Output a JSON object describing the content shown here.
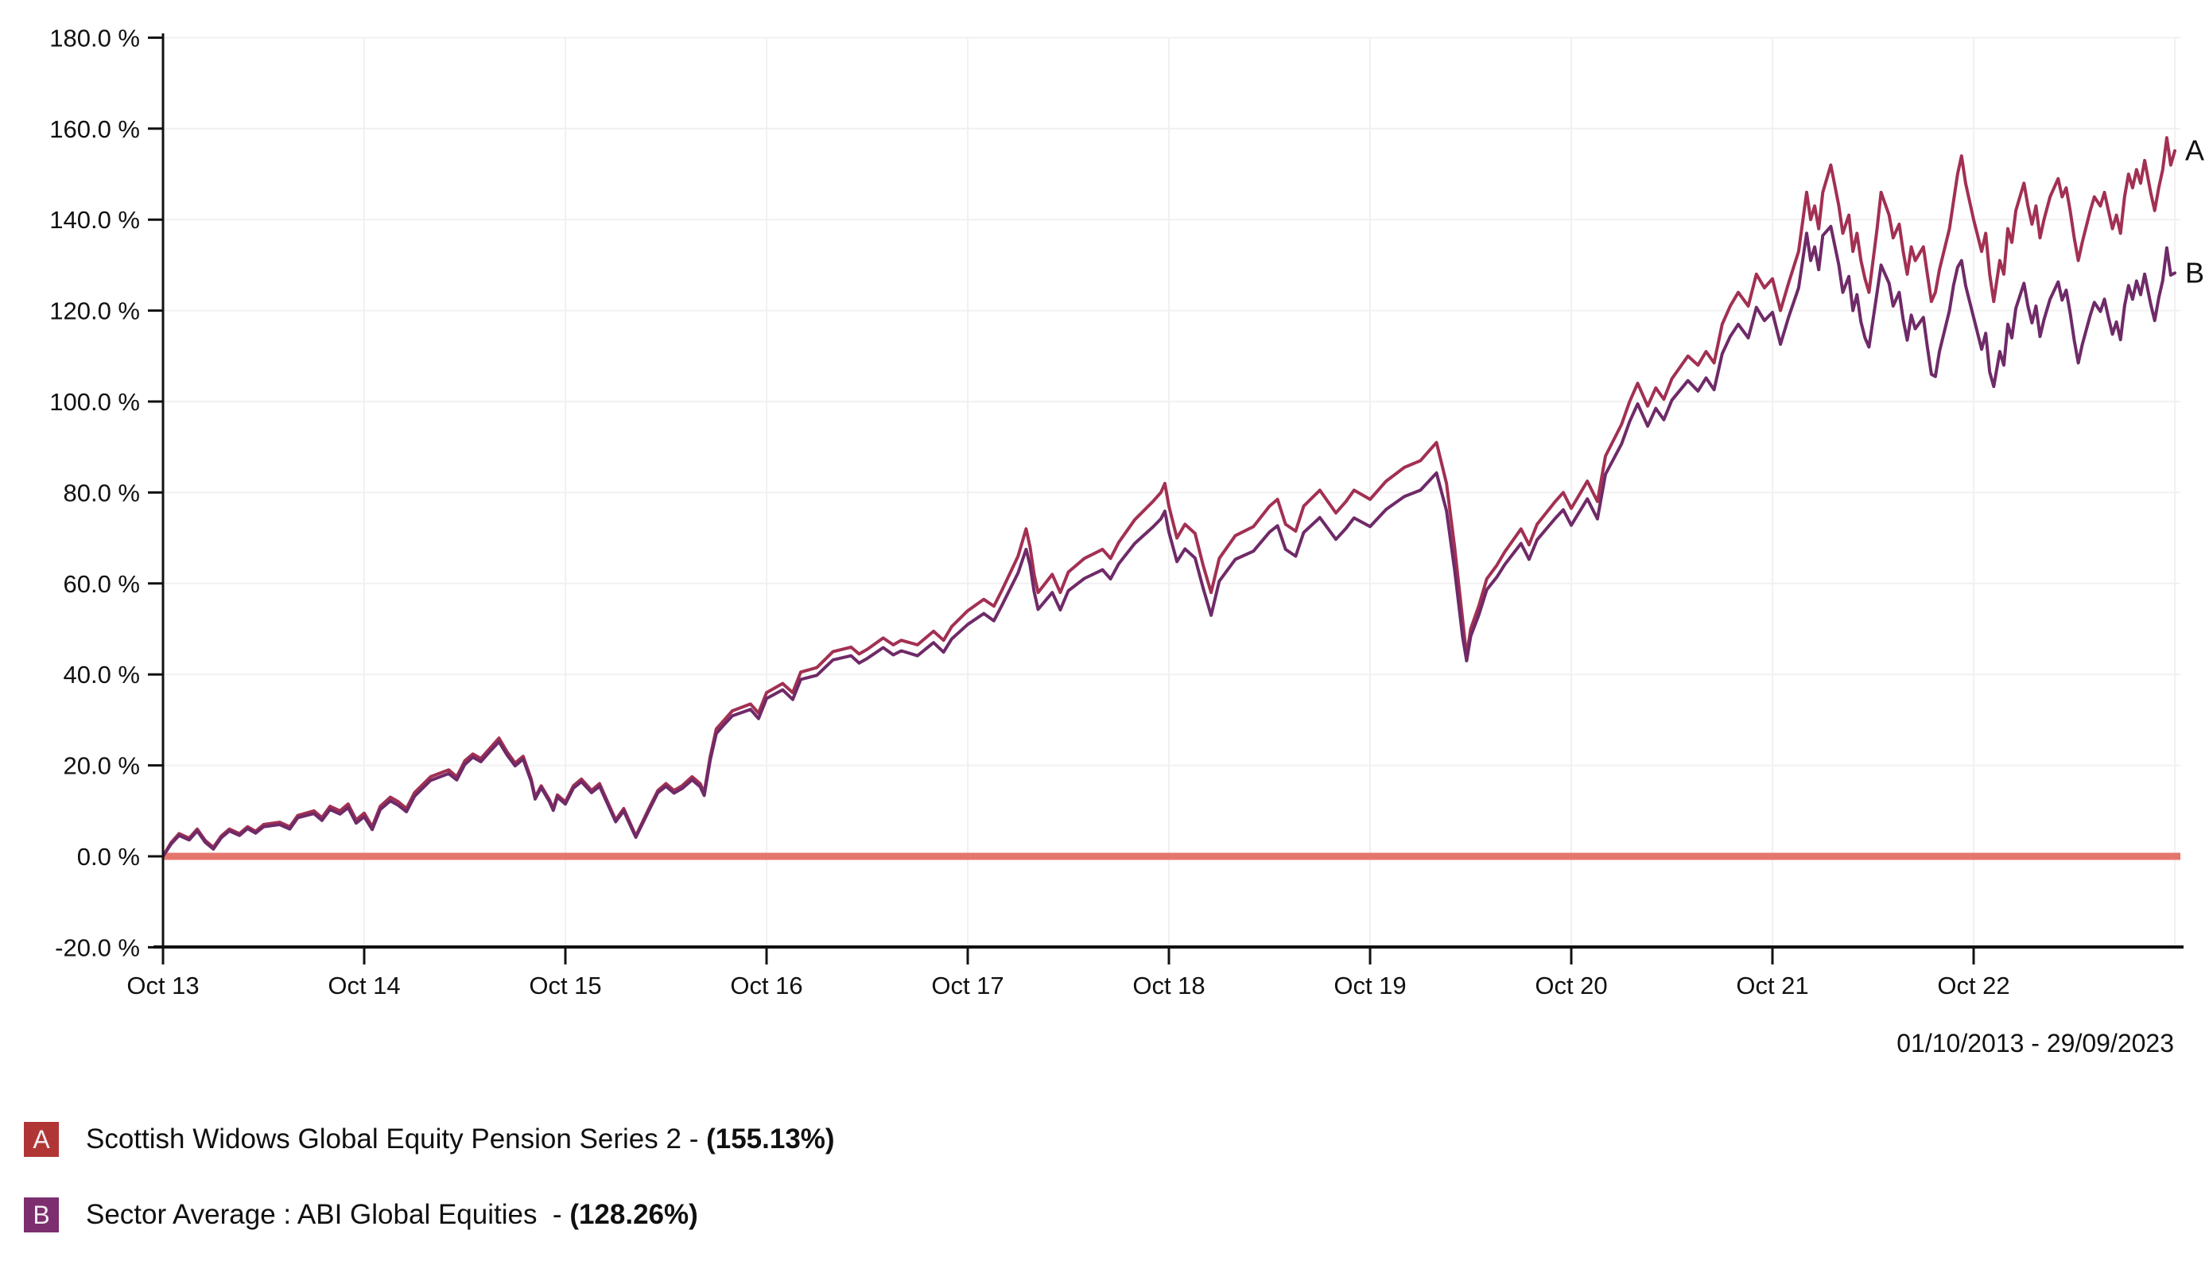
{
  "page": {
    "background": "#ffffff",
    "axis_color": "#111111"
  },
  "date_range_label": "01/10/2013 - 29/09/2023",
  "legend_separator": "- ",
  "chart_data": {
    "type": "line",
    "title": "",
    "date_range": "01/10/2013 - 29/09/2023",
    "grid": true,
    "grid_color": "#f2f0f1",
    "legend_position": "bottom-left",
    "x": {
      "unit": "years since 01/10/2013",
      "min": 0,
      "max": 10,
      "ticks": [
        {
          "t": 0,
          "label": "Oct 13"
        },
        {
          "t": 1,
          "label": "Oct 14"
        },
        {
          "t": 2,
          "label": "Oct 15"
        },
        {
          "t": 3,
          "label": "Oct 16"
        },
        {
          "t": 4,
          "label": "Oct 17"
        },
        {
          "t": 5,
          "label": "Oct 18"
        },
        {
          "t": 6,
          "label": "Oct 19"
        },
        {
          "t": 7,
          "label": "Oct 20"
        },
        {
          "t": 8,
          "label": "Oct 21"
        },
        {
          "t": 9,
          "label": "Oct 22"
        }
      ]
    },
    "y": {
      "unit": "%",
      "min": -20,
      "max": 180,
      "tick_step": 20,
      "tick_labels": [
        "-20.0 %",
        "0.0 %",
        "20.0 %",
        "40.0 %",
        "60.0 %",
        "80.0 %",
        "100.0 %",
        "120.0 %",
        "140.0 %",
        "160.0 %",
        "180.0 %"
      ]
    },
    "zero_line": {
      "value": 0,
      "color": "#e4756d"
    },
    "t": [
      0.0,
      0.04,
      0.08,
      0.13,
      0.17,
      0.21,
      0.25,
      0.29,
      0.33,
      0.38,
      0.42,
      0.46,
      0.5,
      0.58,
      0.63,
      0.67,
      0.75,
      0.79,
      0.83,
      0.88,
      0.92,
      0.96,
      1.0,
      1.04,
      1.08,
      1.13,
      1.17,
      1.21,
      1.25,
      1.33,
      1.42,
      1.46,
      1.5,
      1.54,
      1.58,
      1.63,
      1.67,
      1.71,
      1.75,
      1.79,
      1.83,
      1.85,
      1.88,
      1.92,
      1.94,
      1.96,
      2.0,
      2.04,
      2.08,
      2.13,
      2.17,
      2.21,
      2.25,
      2.29,
      2.33,
      2.35,
      2.42,
      2.46,
      2.5,
      2.54,
      2.58,
      2.63,
      2.67,
      2.69,
      2.72,
      2.75,
      2.79,
      2.83,
      2.92,
      2.96,
      3.0,
      3.08,
      3.13,
      3.17,
      3.25,
      3.33,
      3.42,
      3.46,
      3.5,
      3.58,
      3.63,
      3.67,
      3.75,
      3.83,
      3.88,
      3.92,
      4.0,
      4.08,
      4.13,
      4.17,
      4.25,
      4.29,
      4.31,
      4.33,
      4.35,
      4.42,
      4.46,
      4.5,
      4.58,
      4.67,
      4.71,
      4.75,
      4.83,
      4.92,
      4.96,
      4.98,
      5.0,
      5.04,
      5.08,
      5.13,
      5.17,
      5.21,
      5.25,
      5.33,
      5.42,
      5.5,
      5.54,
      5.58,
      5.63,
      5.67,
      5.75,
      5.79,
      5.83,
      5.88,
      5.92,
      6.0,
      6.08,
      6.17,
      6.25,
      6.29,
      6.33,
      6.38,
      6.42,
      6.46,
      6.48,
      6.5,
      6.54,
      6.58,
      6.63,
      6.67,
      6.75,
      6.79,
      6.83,
      6.92,
      6.96,
      7.0,
      7.04,
      7.08,
      7.13,
      7.17,
      7.25,
      7.29,
      7.33,
      7.38,
      7.42,
      7.46,
      7.5,
      7.58,
      7.63,
      7.67,
      7.71,
      7.75,
      7.79,
      7.83,
      7.88,
      7.92,
      7.96,
      8.0,
      8.04,
      8.08,
      8.13,
      8.17,
      8.19,
      8.21,
      8.23,
      8.25,
      8.29,
      8.33,
      8.35,
      8.38,
      8.4,
      8.42,
      8.44,
      8.46,
      8.48,
      8.5,
      8.52,
      8.54,
      8.58,
      8.6,
      8.63,
      8.65,
      8.67,
      8.69,
      8.71,
      8.75,
      8.77,
      8.79,
      8.81,
      8.83,
      8.88,
      8.9,
      8.92,
      8.94,
      8.96,
      9.0,
      9.04,
      9.06,
      9.08,
      9.1,
      9.13,
      9.15,
      9.17,
      9.19,
      9.21,
      9.25,
      9.27,
      9.29,
      9.31,
      9.33,
      9.35,
      9.38,
      9.42,
      9.44,
      9.46,
      9.48,
      9.5,
      9.52,
      9.54,
      9.58,
      9.6,
      9.63,
      9.65,
      9.67,
      9.69,
      9.71,
      9.73,
      9.75,
      9.77,
      9.79,
      9.81,
      9.83,
      9.85,
      9.88,
      9.9,
      9.92,
      9.94,
      9.96,
      9.98,
      10.0
    ],
    "series": [
      {
        "id": "A",
        "name": "Scottish Widows Global Equity Pension Series 2 ",
        "final_label": "(155.13%)",
        "final_value": 155.13,
        "color": "#a23052",
        "legend_color": "#b13535",
        "values": [
          0,
          3,
          5,
          4,
          6,
          3.5,
          2,
          4.5,
          6,
          5,
          6.5,
          5.5,
          7,
          7.5,
          6.5,
          9,
          10,
          8.5,
          11,
          10,
          11.5,
          8,
          9.5,
          6.5,
          11,
          13,
          12,
          10.5,
          14,
          17.5,
          19,
          17.5,
          21,
          22.5,
          21.5,
          24,
          26,
          23,
          20.5,
          22,
          17,
          13,
          15.5,
          12.5,
          10.5,
          13.5,
          12,
          15.5,
          17,
          14.5,
          16,
          12,
          8,
          10.5,
          6.5,
          4.5,
          11,
          14.5,
          16,
          14.5,
          15.5,
          17.5,
          16,
          14,
          22,
          28,
          30,
          32,
          33.5,
          31.5,
          36,
          38,
          36,
          40.5,
          41.5,
          45,
          46,
          44.5,
          45.5,
          48,
          46.5,
          47.5,
          46.5,
          49.5,
          47.5,
          50.5,
          54,
          56.5,
          55,
          58.5,
          66,
          72,
          68,
          62,
          58,
          62,
          58,
          62.5,
          65.5,
          67.5,
          65.5,
          69,
          74,
          78,
          80,
          82,
          77,
          70,
          73,
          71,
          64,
          58,
          65.5,
          70.5,
          72.5,
          77,
          78.5,
          73,
          71.5,
          77,
          80.5,
          78,
          75.5,
          78,
          80.5,
          78.5,
          82.5,
          85.5,
          87,
          89,
          91,
          82,
          68,
          52,
          44,
          50,
          55,
          61,
          64,
          67,
          72,
          68.5,
          73,
          78,
          80,
          76.5,
          79.5,
          82.5,
          78,
          88,
          95,
          100,
          104,
          99,
          103,
          100.5,
          105,
          110,
          108,
          111,
          108.5,
          117,
          121,
          124,
          121,
          128,
          125,
          127,
          120,
          126,
          133,
          146,
          140,
          143,
          138,
          146,
          152,
          143,
          137,
          141,
          133,
          137,
          131,
          127,
          124,
          131,
          138,
          146,
          141,
          136,
          139,
          133,
          128,
          134,
          131,
          134,
          128,
          122,
          124,
          129,
          138,
          144,
          150,
          154,
          148,
          140,
          133,
          137,
          128,
          122,
          131,
          128,
          138,
          135,
          142,
          148,
          143,
          139,
          143,
          136,
          140,
          145,
          149,
          145,
          147,
          142,
          136,
          131,
          135,
          142,
          145,
          143,
          146,
          142,
          138,
          141,
          137,
          145,
          150,
          147,
          151,
          148,
          153,
          146,
          142,
          147,
          151,
          158,
          152,
          155.13
        ]
      },
      {
        "id": "B",
        "name": "Sector Average : ABI Global Equities  ",
        "final_label": "(128.26%)",
        "final_value": 128.26,
        "color": "#6f2a68",
        "legend_color": "#7c2e6f",
        "values": [
          0,
          2.7,
          4.6,
          3.6,
          5.6,
          3.1,
          1.6,
          4.1,
          5.6,
          4.6,
          6.1,
          5.1,
          6.5,
          7,
          6,
          8.5,
          9.4,
          7.9,
          10.3,
          9.3,
          10.7,
          7.3,
          8.7,
          5.9,
          10.3,
          12.2,
          11.2,
          9.8,
          13.2,
          16.7,
          18.2,
          16.8,
          20.2,
          21.8,
          20.8,
          23.3,
          25.2,
          22.3,
          19.9,
          21.4,
          16.5,
          12.6,
          15.1,
          12.1,
          10.1,
          13,
          11.5,
          15,
          16.4,
          14,
          15.4,
          11.5,
          7.6,
          10,
          6.1,
          4.2,
          10.5,
          14,
          15.4,
          13.9,
          14.9,
          16.8,
          15.3,
          13.4,
          21.2,
          27,
          29,
          30.9,
          32.3,
          30.3,
          34.7,
          36.6,
          34.5,
          38.9,
          39.8,
          43.2,
          44.1,
          42.5,
          43.5,
          45.9,
          44.3,
          45.2,
          44.1,
          47,
          44.9,
          47.8,
          51,
          53.4,
          51.8,
          55.2,
          62.3,
          67.5,
          64,
          58.2,
          54.3,
          58,
          54.2,
          58.4,
          61.1,
          63,
          61,
          64.3,
          68.8,
          72.4,
          74.2,
          75.9,
          71.3,
          64.8,
          67.6,
          65.6,
          59,
          53,
          60.5,
          65.3,
          67.1,
          71.3,
          72.7,
          67.5,
          66,
          71.2,
          74.5,
          72.1,
          69.7,
          72.1,
          74.4,
          72.5,
          76.3,
          79.1,
          80.5,
          82.4,
          84.3,
          76,
          63,
          48.2,
          43,
          48.4,
          53,
          58.6,
          61.4,
          64.2,
          68.8,
          65.3,
          69.6,
          74.3,
          76.2,
          72.8,
          75.7,
          78.6,
          74.2,
          84,
          90.7,
          95.6,
          99.5,
          94.6,
          98.5,
          96,
          100.3,
          104.6,
          102.3,
          105.2,
          102.6,
          110.5,
          114.3,
          117,
          114,
          120.7,
          117.8,
          119.6,
          112.6,
          118.5,
          125,
          137,
          131,
          134,
          129,
          136.5,
          138.5,
          130,
          124,
          127.5,
          120,
          123.5,
          117.5,
          114,
          112,
          118,
          124,
          130,
          126,
          121,
          124,
          118,
          113.5,
          119,
          116,
          118.5,
          112,
          106,
          105.5,
          111,
          120,
          125.5,
          129.5,
          131,
          125.5,
          118.5,
          111.5,
          115,
          106.5,
          103.3,
          111,
          108,
          117,
          114,
          120.5,
          126,
          121,
          117.3,
          121,
          114.3,
          118,
          122.5,
          126.3,
          122.3,
          124.5,
          119.5,
          113.5,
          108.5,
          112.5,
          119,
          121.8,
          119.8,
          122.5,
          118.5,
          114.8,
          117.5,
          113.6,
          121,
          125.5,
          122.5,
          126.5,
          123.5,
          128,
          121.5,
          117.8,
          122.8,
          126.6,
          133.8,
          127.8,
          128.26
        ]
      }
    ]
  }
}
